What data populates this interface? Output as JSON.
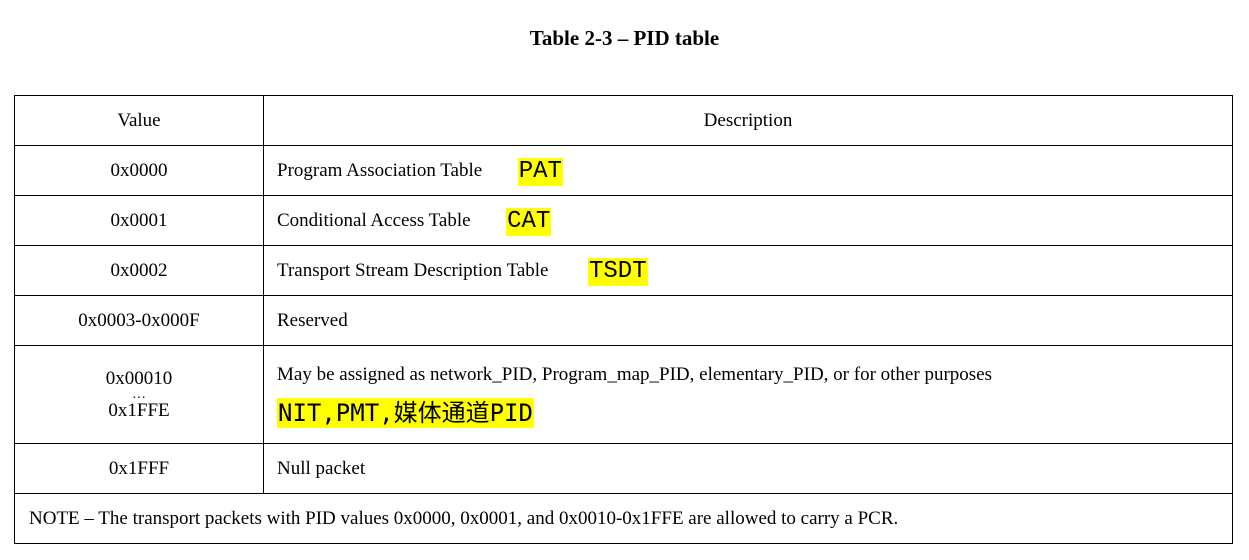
{
  "title": "Table 2-3 – PID table",
  "header": {
    "value": "Value",
    "description": "Description"
  },
  "rows": [
    {
      "value": "0x0000",
      "description": "Program Association Table",
      "note": "PAT"
    },
    {
      "value": "0x0001",
      "description": "Conditional Access Table",
      "note": "CAT"
    },
    {
      "value": "0x0002",
      "description": "Transport Stream Description Table",
      "note": "TSDT"
    },
    {
      "value": "0x0003-0x000F",
      "description": "Reserved"
    },
    {
      "value_start": "0x00010",
      "value_dots": "…",
      "value_end": "0x1FFE",
      "description": "May be assigned as network_PID, Program_map_PID, elementary_PID, or for other purposes",
      "note": "NIT,PMT,媒体通道PID"
    },
    {
      "value": "0x1FFF",
      "description": "Null packet"
    }
  ],
  "footnote": "NOTE – The transport packets with PID values 0x0000, 0x0001, and 0x0010-0x1FFE are allowed to carry a PCR.",
  "colors": {
    "highlight": "#ffff00",
    "border": "#000000"
  }
}
